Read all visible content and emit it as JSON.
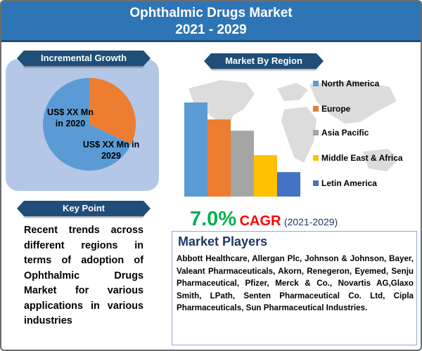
{
  "header": {
    "title_line1": "Ophthalmic Drugs Market",
    "title_line2": "2021 - 2029"
  },
  "incremental_growth": {
    "heading": "Incremental Growth",
    "label_2020": "US$ XX Mn in 2020",
    "label_2029": "US$ XX Mn in 2029"
  },
  "market_by_region": {
    "heading": "Market By Region"
  },
  "key_point": {
    "heading": "Key Point",
    "text": "Recent trends across different regions in terms of adoption of Ophthalmic Drugs Market for various applications in various industries"
  },
  "cagr": {
    "value": "7.0%",
    "label": "CAGR",
    "period": "(2021-2029)"
  },
  "market_players": {
    "title": "Market Players",
    "text": "Abbott Healthcare, Allergan Plc, Johnson & Johnson, Bayer, Valeant Pharmaceuticals, Akorn, Renegeron, Eyemed, Senju Pharmaceutical, Pfizer, Merck & Co., Novartis AG,Glaxo Smith, LPath, Senten Pharmaceutical Co. Ltd, Cipla Pharmaceuticals, Sun Pharmaceutical Industries."
  },
  "chart_data": [
    {
      "type": "pie",
      "categories": [
        "US$ XX Mn in 2020",
        "US$ XX Mn in 2029"
      ],
      "values": [
        32,
        68
      ],
      "colors": [
        "#ed7d31",
        "#5b9bd5"
      ]
    },
    {
      "type": "bar",
      "categories": [
        "North America",
        "Europe",
        "Asia Pacific",
        "Middle East & Africa",
        "Letin America"
      ],
      "values": [
        100,
        82,
        70,
        44,
        26
      ],
      "ylim": [
        0,
        100
      ],
      "colors": [
        "#5b9bd5",
        "#ed7d31",
        "#a5a5a5",
        "#ffc000",
        "#4472c4"
      ],
      "legend_position": "right"
    }
  ]
}
